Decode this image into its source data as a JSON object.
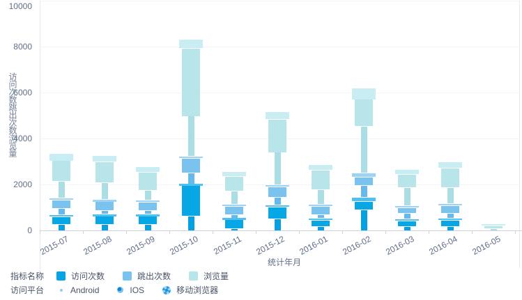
{
  "chart": {
    "y_axis": {
      "title": "访问次数跳出次数浏览量"
    },
    "x_axis": {
      "title": "统计年月"
    },
    "legend_metrics": {
      "label": "指标名称",
      "items": [
        {
          "name": "访问次数",
          "color": "#07a3e3"
        },
        {
          "name": "跳出次数",
          "color": "#7ac3ee"
        },
        {
          "name": "浏览量",
          "color": "#b7e5ea"
        }
      ]
    },
    "legend_platforms": {
      "label": "访问平台",
      "items": [
        {
          "name": "Android",
          "symbol": "small-dot"
        },
        {
          "name": "IOS",
          "symbol": "circle-dot"
        },
        {
          "name": "移动浏览器",
          "symbol": "patterned-circle"
        }
      ]
    }
  },
  "chart_data": {
    "type": "bar",
    "stacked": true,
    "title": "",
    "xlabel": "统计年月",
    "ylabel": "访问次数 / 跳出次数 / 浏览量",
    "ylim": [
      0,
      10000
    ],
    "y_ticks": [
      0,
      2000,
      4000,
      6000,
      8000,
      10000
    ],
    "grid": true,
    "legend_position": "bottom",
    "categories": [
      "2015-07",
      "2015-08",
      "2015-09",
      "2015-10",
      "2015-11",
      "2015-12",
      "2016-01",
      "2016-02",
      "2016-03",
      "2016-04",
      "2016-05"
    ],
    "series": [
      {
        "metric": "访问次数",
        "platform": "Android",
        "color": "#04a0e0",
        "values": [
          280,
          280,
          280,
          630,
          95,
          500,
          190,
          910,
          190,
          190,
          0
        ]
      },
      {
        "metric": "访问次数",
        "platform": "IOS",
        "color": "#07a6e5",
        "values": [
          315,
          340,
          340,
          1320,
          370,
          530,
          250,
          370,
          220,
          260,
          0
        ]
      },
      {
        "metric": "访问次数",
        "platform": "移动浏览器",
        "color": "#4fc0f0",
        "values": [
          95,
          95,
          95,
          95,
          95,
          95,
          95,
          160,
          95,
          95,
          0
        ]
      },
      {
        "metric": "跳出次数",
        "platform": "Android",
        "color": "#66b9ec",
        "values": [
          285,
          170,
          160,
          470,
          135,
          315,
          160,
          530,
          250,
          220,
          0
        ]
      },
      {
        "metric": "跳出次数",
        "platform": "IOS",
        "color": "#7ac3ee",
        "values": [
          345,
          370,
          370,
          630,
          370,
          470,
          370,
          370,
          250,
          315,
          0
        ]
      },
      {
        "metric": "跳出次数",
        "platform": "移动浏览器",
        "color": "#9dd4f4",
        "values": [
          95,
          95,
          95,
          95,
          95,
          95,
          95,
          160,
          95,
          95,
          0
        ]
      },
      {
        "metric": "浏览量",
        "platform": "Android",
        "color": "#abdee4",
        "values": [
          725,
          750,
          410,
          1740,
          570,
          1400,
          630,
          2050,
          780,
          690,
          80
        ]
      },
      {
        "metric": "浏览量",
        "platform": "IOS",
        "color": "#b7e5ea",
        "values": [
          900,
          900,
          790,
          2960,
          630,
          1450,
          850,
          1160,
          580,
          850,
          120
        ]
      },
      {
        "metric": "浏览量",
        "platform": "移动浏览器",
        "color": "#c8edf2",
        "values": [
          315,
          280,
          250,
          380,
          220,
          315,
          220,
          500,
          190,
          280,
          90
        ]
      }
    ]
  }
}
